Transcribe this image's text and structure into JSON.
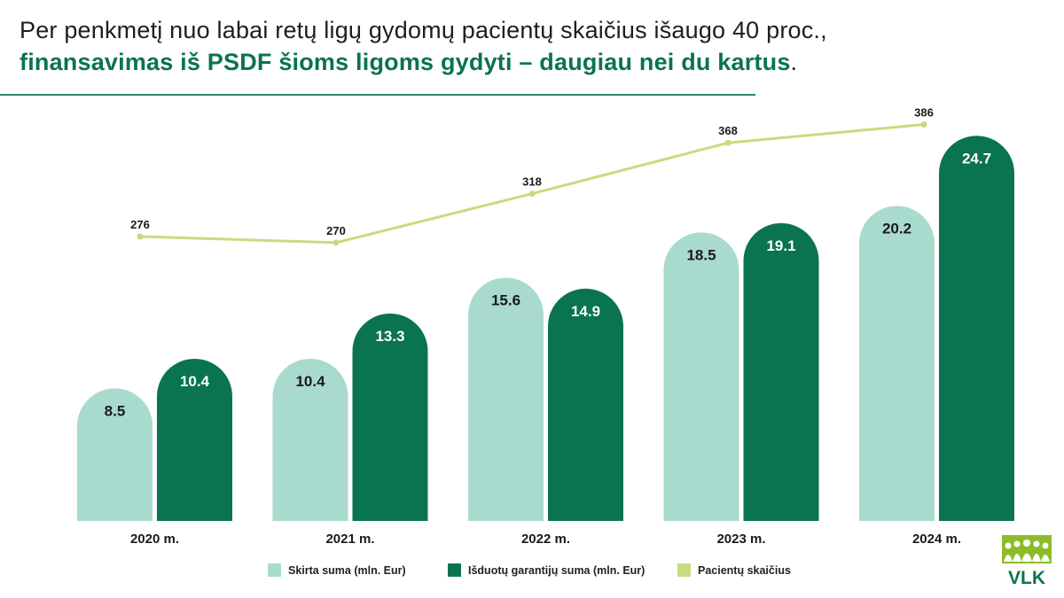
{
  "header": {
    "title_line1": "Per penkmetį nuo labai retų ligų gydomų pacientų skaičius išaugo 40 proc.,",
    "title_line2_highlight": "finansavimas iš PSDF šioms ligoms gydyti – daugiau nei du kartus",
    "title_line2_end": "."
  },
  "colors": {
    "allocated": "#a9dace",
    "spent": "#0a7352",
    "patients": "#c6dc80",
    "accent": "#0a7350"
  },
  "chart_data": {
    "type": "bar",
    "categories": [
      "2020 m.",
      "2021 m.",
      "2022 m.",
      "2023 m.",
      "2024 m."
    ],
    "series": [
      {
        "name": "Skirta suma (mln. Eur)",
        "type": "bar",
        "values": [
          8.5,
          10.4,
          15.6,
          18.5,
          20.2
        ]
      },
      {
        "name": "Išduotų garantijų suma (mln. Eur)",
        "type": "bar",
        "values": [
          10.4,
          13.3,
          14.9,
          19.1,
          24.7
        ]
      },
      {
        "name": "Pacientų skaičius",
        "type": "line",
        "values": [
          276,
          270,
          318,
          368,
          386
        ]
      }
    ],
    "legend_position": "bottom",
    "grid": false
  },
  "logo": {
    "text": "VLK"
  }
}
